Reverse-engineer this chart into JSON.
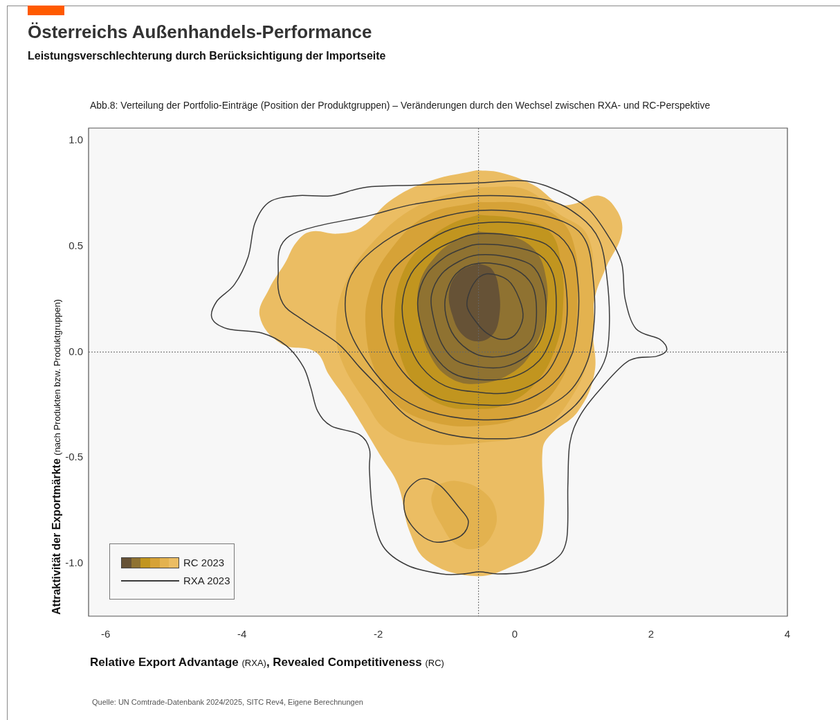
{
  "chart_data": {
    "type": "area",
    "title": "Österreichs Außenhandels-Performance",
    "subtitle": "Leistungsverschlechterung durch Berücksichtigung der Importseite",
    "annotations": [
      "Abb.8: Verteilung der Portfolio-Einträge (Position der Produktgruppen) – Veränderungen durch den Wechsel zwischen RXA- und RC-Perspektive",
      "Quelle: UN Comtrade-Datenbank 2024/2025, SITC Rev4, Eigene Berechnungen",
      "RXA 2023"
    ],
    "xlabel": "Relative Export Advantage (RXA), Revealed Competitiveness (RC)",
    "ylabel": "Attraktivität der Exportmärkte (nach Produkten bzw. Produktgruppen)",
    "xlim": [
      -6.25,
      4
    ],
    "xticks": [
      -6,
      -4,
      -2,
      0,
      2,
      4
    ],
    "ylim": [
      -1.25,
      1.06
    ],
    "yticks": [
      {
        "value": -1,
        "label": "-1.0"
      },
      -0.5,
      {
        "value": 0,
        "label": "0.0"
      },
      0.5,
      {
        "value": 1,
        "label": "1.0"
      }
    ],
    "legend": "bottom left",
    "ref_lines": [
      {
        "axis": "x",
        "value": -0.53,
        "line_style": "dotted",
        "color": "#666666"
      },
      {
        "axis": "y",
        "value": 0,
        "line_style": "dotted",
        "color": "#666666"
      }
    ],
    "series": [
      {
        "name": "RC 2023",
        "color": "#ebbd63",
        "x": [
          -0.56,
          -0.22,
          0.28,
          0.66,
          0.86,
          1.24,
          1.5,
          1.57,
          1.34,
          1.17,
          1.15,
          1.17,
          0.93,
          0.53,
          0.41,
          0.43,
          0.32,
          -0.08,
          -0.59,
          -1.27,
          -1.54,
          -1.71,
          -1.95,
          -2.46,
          -2.72,
          -2.92,
          -3.43,
          -3.74,
          -3.6,
          -3.37,
          -3.2,
          -2.99,
          -2.59,
          -2.25,
          -1.81,
          -1.24,
          -0.56
        ],
        "values": [
          0.86,
          0.85,
          0.79,
          0.7,
          0.7,
          0.74,
          0.67,
          0.56,
          0.4,
          0.25,
          0.09,
          -0.1,
          -0.28,
          -0.39,
          -0.46,
          -0.74,
          -0.93,
          -1.02,
          -1.06,
          -0.99,
          -0.85,
          -0.63,
          -0.5,
          -0.23,
          -0.11,
          0,
          0.04,
          0.17,
          0.3,
          0.42,
          0.52,
          0.57,
          0.56,
          0.59,
          0.72,
          0.81,
          0.86
        ]
      },
      {
        "color": "#e3b24f",
        "x": [
          -0.53,
          0.15,
          0.62,
          1.07,
          1.15,
          1.12,
          0.86,
          0.36,
          -0.53,
          -1.37,
          -1.88,
          -2.18,
          -2.54,
          -2.62,
          -2.49,
          -2.08,
          -1.37,
          -0.53
        ],
        "values": [
          0.78,
          0.77,
          0.66,
          0.55,
          0.29,
          0.03,
          -0.2,
          -0.37,
          -0.43,
          -0.43,
          -0.37,
          -0.24,
          -0.04,
          0.12,
          0.32,
          0.52,
          0.7,
          0.78
        ]
      },
      {
        "color": "#e3b24f",
        "x": [
          -1.17,
          -0.86,
          -0.46,
          -0.27,
          -0.34,
          -0.56,
          -0.86,
          -1.07,
          -1.22,
          -1.17
        ],
        "values": [
          -0.63,
          -0.61,
          -0.66,
          -0.76,
          -0.87,
          -0.93,
          -0.91,
          -0.82,
          -0.71,
          -0.63
        ]
      },
      {
        "color": "#d6a237",
        "x": [
          -0.53,
          0.15,
          0.66,
          0.89,
          0.92,
          0.86,
          0.61,
          0.15,
          -0.53,
          -1.22,
          -1.73,
          -2.03,
          -2.18,
          -2.13,
          -1.83,
          -1.27,
          -0.53
        ],
        "values": [
          0.71,
          0.7,
          0.63,
          0.48,
          0.25,
          0.03,
          -0.17,
          -0.3,
          -0.35,
          -0.33,
          -0.25,
          -0.1,
          0.09,
          0.29,
          0.48,
          0.65,
          0.71
        ]
      },
      {
        "color": "#c1951f",
        "x": [
          -0.53,
          0.05,
          0.51,
          0.68,
          0.71,
          0.61,
          0.3,
          -0.15,
          -0.53,
          -1.07,
          -1.47,
          -1.7,
          -1.76,
          -1.62,
          -1.27,
          -0.91,
          -0.53
        ],
        "values": [
          0.65,
          0.63,
          0.57,
          0.42,
          0.22,
          0.03,
          -0.15,
          -0.25,
          -0.27,
          -0.25,
          -0.15,
          0.01,
          0.19,
          0.39,
          0.53,
          0.61,
          0.65
        ]
      },
      {
        "color": "#8f7231",
        "x": [
          -0.53,
          -0.05,
          0.3,
          0.46,
          0.46,
          0.3,
          0,
          -0.53,
          -0.96,
          -1.25,
          -1.4,
          -1.4,
          -1.17,
          -0.86,
          -0.53
        ],
        "values": [
          0.57,
          0.55,
          0.48,
          0.35,
          0.19,
          0.03,
          -0.09,
          -0.15,
          -0.12,
          -0.01,
          0.16,
          0.32,
          0.45,
          0.53,
          0.57
        ]
      },
      {
        "color": "#665236",
        "x": [
          -0.53,
          -0.33,
          -0.23,
          -0.23,
          -0.33,
          -0.53,
          -0.76,
          -0.91,
          -0.96,
          -0.81,
          -0.53
        ],
        "values": [
          0.42,
          0.39,
          0.29,
          0.16,
          0.08,
          0.05,
          0.08,
          0.17,
          0.29,
          0.38,
          0.42
        ]
      }
    ]
  }
}
